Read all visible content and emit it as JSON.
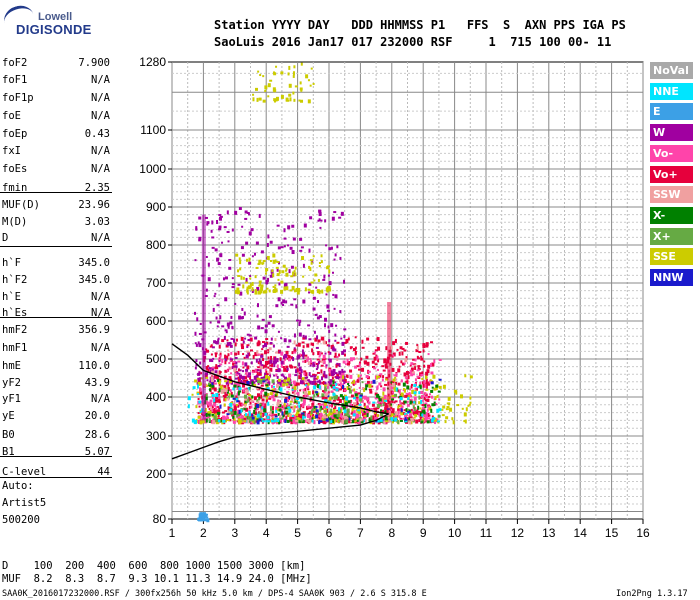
{
  "logo": {
    "top": "Lowell",
    "main": "DIGISONDE"
  },
  "header": {
    "labels": "Station YYYY DAY   DDD HHMMSS P1   FFS  S  AXN PPS IGA PS",
    "values": "SaoLuis 2016 Jan17 017 232000 RSF     1  715 100 00- 11"
  },
  "params": [
    {
      "name": "foF2",
      "value": "7.900"
    },
    {
      "name": "foF1",
      "value": "N/A"
    },
    {
      "name": "foF1p",
      "value": "N/A"
    },
    {
      "name": "foE",
      "value": "N/A"
    },
    {
      "name": "foEp",
      "value": "0.43"
    },
    {
      "name": "fxI",
      "value": "N/A"
    },
    {
      "name": "foEs",
      "value": "N/A"
    },
    {
      "name": "fmin",
      "value": "2.35"
    },
    {
      "name": "MUF(D)",
      "value": "23.96"
    },
    {
      "name": "M(D)",
      "value": "3.03"
    },
    {
      "name": "D",
      "value": "N/A"
    },
    {
      "name": "h`F",
      "value": "345.0"
    },
    {
      "name": "h`F2",
      "value": "345.0"
    },
    {
      "name": "h`E",
      "value": "N/A"
    },
    {
      "name": "h`Es",
      "value": "N/A"
    },
    {
      "name": "hmF2",
      "value": "356.9"
    },
    {
      "name": "hmF1",
      "value": "N/A"
    },
    {
      "name": "hmE",
      "value": "110.0"
    },
    {
      "name": "yF2",
      "value": "43.9"
    },
    {
      "name": "yF1",
      "value": "N/A"
    },
    {
      "name": "yE",
      "value": "20.0"
    },
    {
      "name": "B0",
      "value": "28.6"
    },
    {
      "name": "B1",
      "value": "5.07"
    },
    {
      "name": "C-level",
      "value": "44"
    }
  ],
  "auto": [
    "Auto:",
    "Artist5",
    "500200"
  ],
  "legend": [
    {
      "label": "NoVal",
      "color": "#a9a9a9"
    },
    {
      "label": "NNE",
      "color": "#00e5ff"
    },
    {
      "label": "E",
      "color": "#3ca0e6"
    },
    {
      "label": "W",
      "color": "#a000a0"
    },
    {
      "label": "Vo-",
      "color": "#ff44aa"
    },
    {
      "label": "Vo+",
      "color": "#e6003c"
    },
    {
      "label": "SSW",
      "color": "#f0a0a0"
    },
    {
      "label": "X-",
      "color": "#008000"
    },
    {
      "label": "X+",
      "color": "#66aa44"
    },
    {
      "label": "SSE",
      "color": "#cccc00"
    },
    {
      "label": "NNW",
      "color": "#1a1acc"
    }
  ],
  "footer": {
    "d_row": "D    100  200  400  600  800 1000 1500 3000 [km]",
    "muf_row": "MUF  8.2  8.3  8.7  9.3 10.1 11.3 14.9 24.0 [MHz]",
    "info": "SAA0K_2016017232000.RSF / 300fx256h 50 kHz 5.0 km / DPS-4 SAA0K 903 / 2.6 S 315.8 E",
    "version": "Ion2Png 1.3.17"
  },
  "chart_data": {
    "type": "scatter",
    "title": "",
    "xlabel": "",
    "ylabel": "",
    "xlim": [
      1,
      16
    ],
    "ylim": [
      80,
      1280
    ],
    "xticks": [
      1,
      2,
      3,
      4,
      5,
      6,
      7,
      8,
      9,
      10,
      11,
      12,
      13,
      14,
      15,
      16
    ],
    "yticks": [
      80,
      200,
      300,
      400,
      500,
      600,
      700,
      800,
      900,
      1000,
      1100,
      1280
    ],
    "y_scale": "nonlinear (ionogram virtual height)",
    "grid": true,
    "legend_position": "right",
    "profile_line": {
      "name": "",
      "color": "#000000",
      "points": [
        [
          1.0,
          240
        ],
        [
          1.5,
          255
        ],
        [
          2.0,
          270
        ],
        [
          2.5,
          285
        ],
        [
          3.0,
          297
        ],
        [
          4.0,
          305
        ],
        [
          5.0,
          312
        ],
        [
          6.0,
          320
        ],
        [
          7.0,
          328
        ],
        [
          7.5,
          340
        ],
        [
          7.9,
          357
        ]
      ]
    },
    "trace_line": {
      "color": "#000000",
      "points": [
        [
          1.0,
          540
        ],
        [
          1.5,
          510
        ],
        [
          2.0,
          470
        ],
        [
          3.0,
          440
        ],
        [
          4.0,
          420
        ],
        [
          5.0,
          400
        ],
        [
          6.0,
          385
        ],
        [
          7.0,
          372
        ],
        [
          7.5,
          362
        ],
        [
          7.9,
          357
        ]
      ]
    },
    "echo_regions": [
      {
        "name": "Vo+",
        "x": [
          1.8,
          9.3
        ],
        "y": [
          340,
          560
        ],
        "color": "#e6003c",
        "density": 900
      },
      {
        "name": "Vo-",
        "x": [
          1.8,
          9.5
        ],
        "y": [
          340,
          520
        ],
        "color": "#ff44aa",
        "density": 500
      },
      {
        "name": "W",
        "x": [
          1.7,
          6.5
        ],
        "y": [
          440,
          900
        ],
        "color": "#a000a0",
        "density": 450
      },
      {
        "name": "SSE",
        "x": [
          1.6,
          10.5
        ],
        "y": [
          340,
          460
        ],
        "color": "#cccc00",
        "density": 260
      },
      {
        "name": "SSE-high",
        "x": [
          3.0,
          6.0
        ],
        "y": [
          680,
          780
        ],
        "color": "#cccc00",
        "density": 120
      },
      {
        "name": "SSE-top",
        "x": [
          3.5,
          5.5
        ],
        "y": [
          1180,
          1280
        ],
        "color": "#cccc00",
        "density": 50
      },
      {
        "name": "X-",
        "x": [
          2.0,
          9.5
        ],
        "y": [
          340,
          450
        ],
        "color": "#008000",
        "density": 150
      },
      {
        "name": "X+",
        "x": [
          2.0,
          9.5
        ],
        "y": [
          340,
          450
        ],
        "color": "#66aa44",
        "density": 120
      },
      {
        "name": "NNE",
        "x": [
          1.5,
          9.5
        ],
        "y": [
          340,
          440
        ],
        "color": "#00e5ff",
        "density": 100
      },
      {
        "name": "E",
        "x": [
          1.8,
          2.1
        ],
        "y": [
          82,
          100
        ],
        "color": "#3ca0e6",
        "density": 40
      },
      {
        "name": "NNW",
        "x": [
          1.9,
          9.5
        ],
        "y": [
          340,
          450
        ],
        "color": "#1a1acc",
        "density": 40
      },
      {
        "name": "SSW",
        "x": [
          1.9,
          9.0
        ],
        "y": [
          340,
          560
        ],
        "color": "#f0a0a0",
        "density": 90
      }
    ]
  }
}
